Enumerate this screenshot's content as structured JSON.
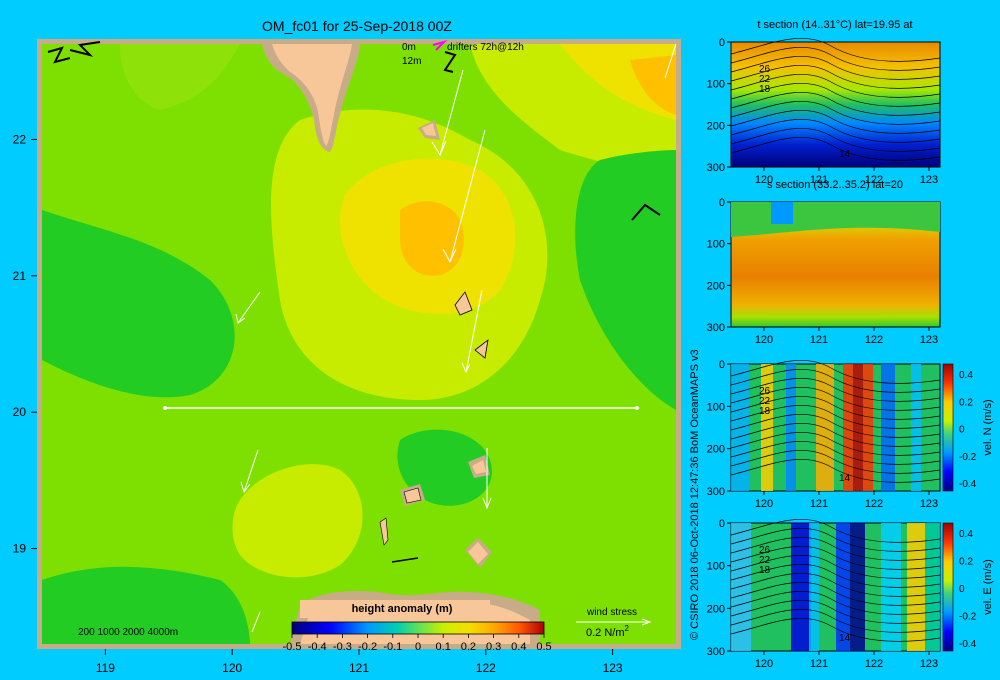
{
  "map": {
    "title": "OM_fc01 for 25-Sep-2018 00Z",
    "legend_line1_depth": "0m",
    "legend_line2_depth": "12m",
    "legend_drifters": "drifters 72h@12h",
    "depth_key": "200  1000  2000  4000m",
    "colorbar_title": "height anomaly (m)",
    "colorbar_ticks": [
      "-0.5",
      "-0.4",
      "-0.3",
      "-0.2",
      "-0.1",
      "0",
      "0.1",
      "0.2",
      "0.3",
      "0.4",
      "0.5"
    ],
    "wind_label": "wind stress",
    "wind_scale": "0.2 N/m",
    "wind_scale_sup": "2",
    "x_ticks": [
      "119",
      "120",
      "121",
      "122",
      "123"
    ],
    "y_ticks": [
      "22",
      "21",
      "20",
      "19"
    ],
    "colors": {
      "background": "#00ccff",
      "land": "#f7c79a",
      "shelf": "#c8ab87",
      "frame": "#c8ab87"
    }
  },
  "panels": [
    {
      "title": "t section (14..31°C) lat=19.95 at",
      "contour_labels": [
        "26",
        "22",
        "18",
        "14"
      ],
      "cbar": false
    },
    {
      "title": "s section (33.2..35.2) lat=20",
      "contour_labels": [],
      "cbar": false
    },
    {
      "title": "",
      "contour_labels": [
        "26",
        "22",
        "18",
        "14"
      ],
      "cbar": true,
      "cbar_label": "vel. N (m/s)",
      "cbar_ticks": [
        "0.4",
        "0.2",
        "0",
        "-0.2",
        "-0.4"
      ]
    },
    {
      "title": "",
      "contour_labels": [
        "26",
        "22",
        "18",
        "14"
      ],
      "cbar": true,
      "cbar_label": "vel. E (m/s)",
      "cbar_ticks": [
        "0.4",
        "0.2",
        "0",
        "-0.2",
        "-0.4"
      ]
    }
  ],
  "panel_x_ticks": [
    "120",
    "121",
    "122",
    "123"
  ],
  "panel_y_ticks": [
    "0",
    "100",
    "200",
    "300"
  ],
  "credit": "© CSIRO 2018  06-Oct-2018 12:47:36 BoM OceanMAPS v3",
  "chart_data": {
    "type": "heatmap",
    "title": "OM_fc01 for 25-Sep-2018 00Z",
    "xlim": [
      118.5,
      123.5
    ],
    "ylim": [
      18.3,
      22.7
    ],
    "colorbar": {
      "label": "height anomaly (m)",
      "range": [
        -0.5,
        0.5
      ]
    },
    "section_latitude": 20,
    "eddies": [
      {
        "lon": 121.6,
        "lat": 21.4,
        "value": 0.2
      },
      {
        "lon": 119.1,
        "lat": 20.8,
        "value": -0.1
      },
      {
        "lon": 123.3,
        "lat": 20.9,
        "value": -0.1
      },
      {
        "lon": 119.7,
        "lat": 18.6,
        "value": -0.1
      },
      {
        "lon": 121.8,
        "lat": 19.7,
        "value": -0.1
      },
      {
        "lon": 120.4,
        "lat": 19.3,
        "value": 0.1
      },
      {
        "lon": 123.4,
        "lat": 22.6,
        "value": 0.2
      }
    ],
    "sections": [
      {
        "name": "t section",
        "ylim": [
          300,
          0
        ],
        "xlim": [
          119.4,
          123.2
        ],
        "contours": [
          26,
          22,
          18,
          14
        ]
      },
      {
        "name": "s section",
        "ylim": [
          300,
          0
        ],
        "xlim": [
          119.4,
          123.2
        ]
      },
      {
        "name": "vel. N (m/s)",
        "ylim": [
          300,
          0
        ],
        "clim": [
          -0.4,
          0.4
        ]
      },
      {
        "name": "vel. E (m/s)",
        "ylim": [
          300,
          0
        ],
        "clim": [
          -0.4,
          0.4
        ]
      }
    ]
  }
}
